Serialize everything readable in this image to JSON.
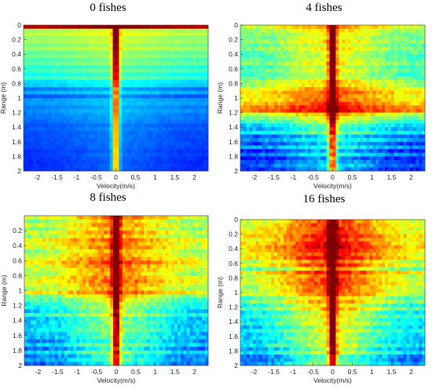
{
  "chart_data": [
    {
      "type": "heatmap",
      "title": "0 fishes",
      "xlabel": "Velocity(m/s)",
      "ylabel": "Range (m)",
      "xlim": [
        -2.35,
        2.35
      ],
      "ylim": [
        0,
        2
      ],
      "x_ticks": [
        -2,
        -1.5,
        -1,
        -0.5,
        0,
        0.5,
        1,
        1.5,
        2
      ],
      "x_tick_labels": [
        "-2",
        "-1.5",
        "-1",
        "-0.5",
        "0",
        "0.5",
        "1",
        "1.5",
        "2"
      ],
      "y_ticks": [
        0,
        0.2,
        0.4,
        0.6,
        0.8,
        1,
        1.2,
        1.4,
        1.6,
        1.8,
        2
      ],
      "y_tick_labels": [
        "0",
        "0.2",
        "0.4",
        "0.6",
        "0.8",
        "1",
        "1.2",
        "1.4",
        "1.6",
        "1.8",
        "2"
      ],
      "range_profile": [
        0.95,
        0.55,
        0.58,
        0.52,
        0.55,
        0.5,
        0.54,
        0.48,
        0.5,
        0.45,
        0.47,
        0.42,
        0.45,
        0.4,
        0.44,
        0.36,
        0.34,
        0.26,
        0.3,
        0.22,
        0.28,
        0.3,
        0.26,
        0.27,
        0.25,
        0.24,
        0.24,
        0.22,
        0.22,
        0.21,
        0.21,
        0.2,
        0.2,
        0.2,
        0.19,
        0.19,
        0.19,
        0.18,
        0.18,
        0.18
      ],
      "line_strength": 1.0,
      "line_width": 0.06,
      "spread": 0.15,
      "noise": 0.03
    },
    {
      "type": "heatmap",
      "title": "4 fishes",
      "xlabel": "Velocity(m/s)",
      "ylabel": "Range (m)",
      "xlim": [
        -2.35,
        2.35
      ],
      "ylim": [
        0,
        2
      ],
      "x_ticks": [
        -2,
        -1.5,
        -1,
        -0.5,
        0,
        0.5,
        1,
        1.5,
        2
      ],
      "x_tick_labels": [
        "-2",
        "-1.5",
        "-1",
        "-0.5",
        "0",
        "0.5",
        "1",
        "1.5",
        "2"
      ],
      "y_ticks": [
        0,
        0.2,
        0.4,
        0.6,
        0.8,
        1,
        1.2,
        1.4,
        1.6,
        1.8,
        2
      ],
      "y_tick_labels": [
        "0",
        "0.2",
        "0.4",
        "0.6",
        "0.8",
        "1",
        "1.2",
        "1.4",
        "1.6",
        "1.8",
        "2"
      ],
      "range_profile": [
        0.6,
        0.55,
        0.55,
        0.5,
        0.52,
        0.5,
        0.52,
        0.48,
        0.5,
        0.48,
        0.5,
        0.47,
        0.48,
        0.46,
        0.5,
        0.55,
        0.58,
        0.6,
        0.65,
        0.66,
        0.68,
        0.7,
        0.75,
        0.78,
        0.6,
        0.5,
        0.45,
        0.38,
        0.3,
        0.36,
        0.25,
        0.3,
        0.22,
        0.28,
        0.2,
        0.25,
        0.2,
        0.22,
        0.24,
        0.2
      ],
      "line_strength": 0.9,
      "line_width": 0.07,
      "spread": 0.45,
      "noise": 0.1
    },
    {
      "type": "heatmap",
      "title": "8 fishes",
      "xlabel": "Velocity(m/s)",
      "ylabel": "Range (m)",
      "xlim": [
        -2.35,
        2.35
      ],
      "ylim": [
        0,
        2
      ],
      "x_ticks": [
        -2,
        -1.5,
        -1,
        -0.5,
        0,
        0.5,
        1,
        1.5,
        2
      ],
      "x_tick_labels": [
        "-2",
        "-1.5",
        "-1",
        "-0.5",
        "0",
        "0.5",
        "1",
        "1.5",
        "2"
      ],
      "y_ticks": [
        0.2,
        0.4,
        0.6,
        0.8,
        1,
        1.2,
        1.4,
        1.6,
        1.8,
        2
      ],
      "y_tick_labels": [
        "0.2",
        "0.4",
        "0.6",
        "0.8",
        "1",
        "1.2",
        "1.4",
        "1.6",
        "1.8",
        "2"
      ],
      "range_profile": [
        0.6,
        0.55,
        0.58,
        0.55,
        0.6,
        0.58,
        0.62,
        0.6,
        0.62,
        0.58,
        0.62,
        0.6,
        0.64,
        0.6,
        0.64,
        0.6,
        0.64,
        0.62,
        0.64,
        0.6,
        0.62,
        0.56,
        0.5,
        0.46,
        0.44,
        0.4,
        0.42,
        0.36,
        0.4,
        0.34,
        0.38,
        0.34,
        0.36,
        0.32,
        0.36,
        0.3,
        0.34,
        0.3,
        0.28,
        0.3
      ],
      "line_strength": 0.95,
      "line_width": 0.07,
      "spread": 0.55,
      "noise": 0.12
    },
    {
      "type": "heatmap",
      "title": "16 fishes",
      "xlabel": "Velocity(m/s)",
      "ylabel": "Range (m)",
      "xlim": [
        -2.35,
        2.35
      ],
      "ylim": [
        0,
        2
      ],
      "x_ticks": [
        -2,
        -1.5,
        -1,
        -0.5,
        0,
        0.5,
        1,
        1.5,
        2
      ],
      "x_tick_labels": [
        "-2",
        "-1.5",
        "-1",
        "-0.5",
        "0",
        "0.5",
        "1",
        "1.5",
        "2"
      ],
      "y_ticks": [
        0,
        0.2,
        0.4,
        0.6,
        0.8,
        1,
        1.2,
        1.4,
        1.6,
        1.8,
        2
      ],
      "y_tick_labels": [
        "0",
        "0.2",
        "0.4",
        "0.6",
        "0.8",
        "1",
        "1.2",
        "1.4",
        "1.6",
        "1.8",
        "2"
      ],
      "range_profile": [
        0.6,
        0.62,
        0.65,
        0.68,
        0.7,
        0.7,
        0.72,
        0.7,
        0.72,
        0.7,
        0.72,
        0.6,
        0.68,
        0.55,
        0.66,
        0.6,
        0.66,
        0.62,
        0.64,
        0.58,
        0.6,
        0.48,
        0.55,
        0.42,
        0.5,
        0.4,
        0.48,
        0.4,
        0.46,
        0.38,
        0.44,
        0.38,
        0.42,
        0.36,
        0.4,
        0.34,
        0.38,
        0.3,
        0.32,
        0.3
      ],
      "line_strength": 0.95,
      "line_width": 0.07,
      "spread": 0.75,
      "noise": 0.12
    }
  ]
}
